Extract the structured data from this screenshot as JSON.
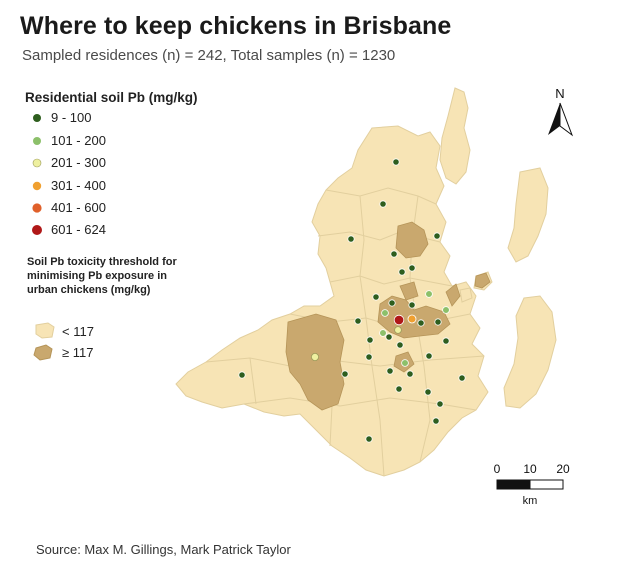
{
  "title": "Where to keep chickens in Brisbane",
  "subtitle": "Sampled residences (n) = 242, Total samples (n) = 1230",
  "source": "Source: Max M. Gillings, Mark Patrick Taylor",
  "legend_pb": {
    "title": "Residential soil Pb (mg/kg)",
    "items": [
      {
        "label": "9 - 100",
        "color": "#2e5e1e"
      },
      {
        "label": "101 - 200",
        "color": "#8cc06a"
      },
      {
        "label": "201 - 300",
        "color": "#eef0a0"
      },
      {
        "label": "301 - 400",
        "color": "#f0a030"
      },
      {
        "label": "401 - 600",
        "color": "#e0602a"
      },
      {
        "label": "601 - 624",
        "color": "#b01818"
      }
    ]
  },
  "legend_threshold": {
    "title_lines": [
      "Soil Pb toxicity threshold for",
      "minimising Pb exposure in",
      "urban chickens (mg/kg)"
    ],
    "items": [
      {
        "label": "< 117",
        "color": "#f7e4b5"
      },
      {
        "label": "≥ 117",
        "color": "#c9a86e"
      }
    ]
  },
  "north_label": "N",
  "scale": {
    "ticks": [
      "0",
      "10",
      "20"
    ],
    "unit": "km"
  },
  "colors": {
    "land_below": "#f7e4b5",
    "land_above": "#c9a86e",
    "border": "#e2cf9e"
  }
}
